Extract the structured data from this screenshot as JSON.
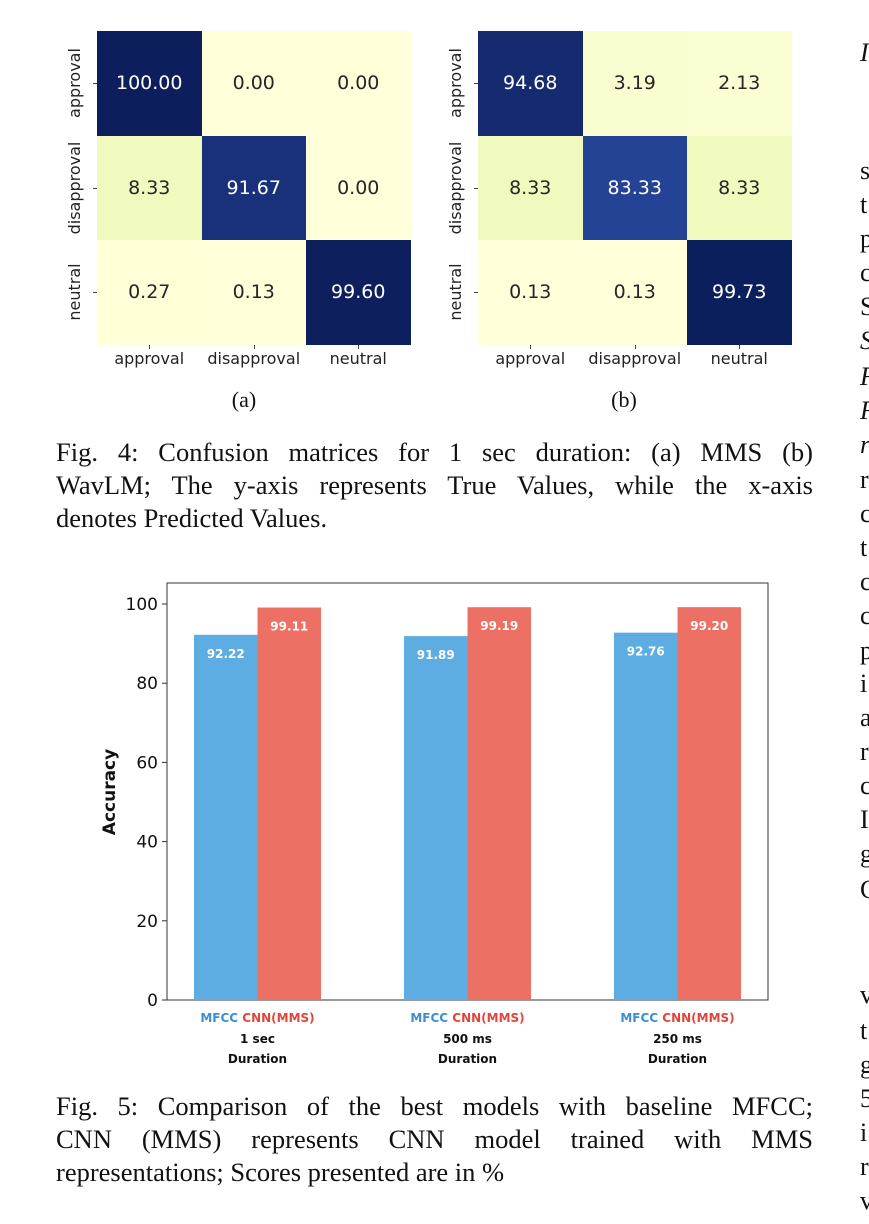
{
  "figure4": {
    "classes": [
      "approval",
      "disapproval",
      "neutral"
    ],
    "matrices": [
      {
        "label": "(a)",
        "model": "MMS",
        "values": [
          [
            "100.00",
            "0.00",
            "0.00"
          ],
          [
            "8.33",
            "91.67",
            "0.00"
          ],
          [
            "0.27",
            "0.13",
            "99.60"
          ]
        ]
      },
      {
        "label": "(b)",
        "model": "WavLM",
        "values": [
          [
            "94.68",
            "3.19",
            "2.13"
          ],
          [
            "8.33",
            "83.33",
            "8.33"
          ],
          [
            "0.13",
            "0.13",
            "99.73"
          ]
        ]
      }
    ],
    "caption_lines": [
      "Fig. 4: Confusion matrices for 1 sec duration: (a) MMS (b)",
      "WavLM; The y-axis represents True Values, while the x-axis",
      "denotes Predicted Values."
    ]
  },
  "chart_data": {
    "type": "bar",
    "title": "",
    "xlabel": "Duration",
    "ylabel": "Accuracy",
    "ylim": [
      0,
      105
    ],
    "yticks": [
      0,
      20,
      40,
      60,
      80,
      100
    ],
    "grid": false,
    "categories": [
      "1 sec",
      "500 ms",
      "250 ms"
    ],
    "category_suffix": "Duration",
    "series": [
      {
        "name": "MFCC",
        "color": "#5dade2",
        "values": [
          92.22,
          91.89,
          92.76
        ],
        "labels": [
          "92.22",
          "91.89",
          "92.76"
        ]
      },
      {
        "name": "CNN(MMS)",
        "color": "#ec7063",
        "values": [
          99.11,
          99.19,
          99.2
        ],
        "labels": [
          "99.11",
          "99.19",
          "99.20"
        ]
      }
    ],
    "legend": "under-each-group"
  },
  "figure5": {
    "caption_lines": [
      "Fig. 5: Comparison of the best models with baseline MFCC;",
      "CNN (MMS) represents CNN model trained with MMS",
      "representations; Scores presented are in %"
    ]
  },
  "side_column_glyphs": [
    {
      "t": "I",
      "italic": true
    },
    {
      "t": "s"
    },
    {
      "t": "t"
    },
    {
      "t": "p"
    },
    {
      "t": "c"
    },
    {
      "t": "S"
    },
    {
      "t": "S",
      "italic": true
    },
    {
      "t": "F",
      "italic": true
    },
    {
      "t": "F",
      "italic": true
    },
    {
      "t": "r",
      "italic": true
    },
    {
      "t": "r"
    },
    {
      "t": "c"
    },
    {
      "t": "t"
    },
    {
      "t": "c"
    },
    {
      "t": "c"
    },
    {
      "t": "p"
    },
    {
      "t": "i"
    },
    {
      "t": "a"
    },
    {
      "t": "r"
    },
    {
      "t": "c"
    },
    {
      "t": "I"
    },
    {
      "t": "g"
    },
    {
      "t": "C"
    },
    {
      "t": "v"
    },
    {
      "t": "t"
    },
    {
      "t": "g"
    },
    {
      "t": "5"
    },
    {
      "t": "i"
    },
    {
      "t": "r"
    },
    {
      "t": "v"
    }
  ],
  "colors": {
    "heat_high": "#0c1f5c",
    "heat_mid": "#23408f",
    "heat_low": "#ffffd9",
    "heat_lowish": "#eef8c2"
  }
}
